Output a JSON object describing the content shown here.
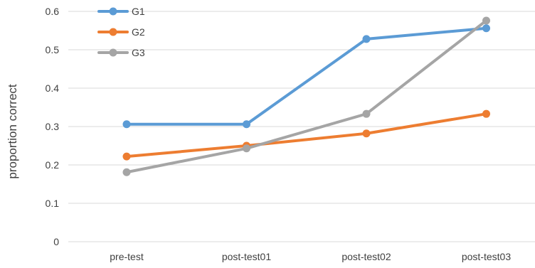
{
  "chart_data": {
    "type": "line",
    "title": "",
    "xlabel": "",
    "ylabel": "proportion correct",
    "categories": [
      "pre-test",
      "post-test01",
      "post-test02",
      "post-test03"
    ],
    "ylim": [
      0,
      0.6
    ],
    "yticks": [
      "0",
      "0.1",
      "0.2",
      "0.3",
      "0.4",
      "0.5",
      "0.6"
    ],
    "grid": true,
    "legend_position": "top-left",
    "series": [
      {
        "name": "G1",
        "color": "#5B9BD5",
        "values": [
          0.306,
          0.306,
          0.528,
          0.556
        ]
      },
      {
        "name": "G2",
        "color": "#ED7D31",
        "values": [
          0.222,
          0.25,
          0.282,
          0.333
        ]
      },
      {
        "name": "G3",
        "color": "#A5A5A5",
        "values": [
          0.181,
          0.243,
          0.333,
          0.576
        ]
      }
    ]
  }
}
